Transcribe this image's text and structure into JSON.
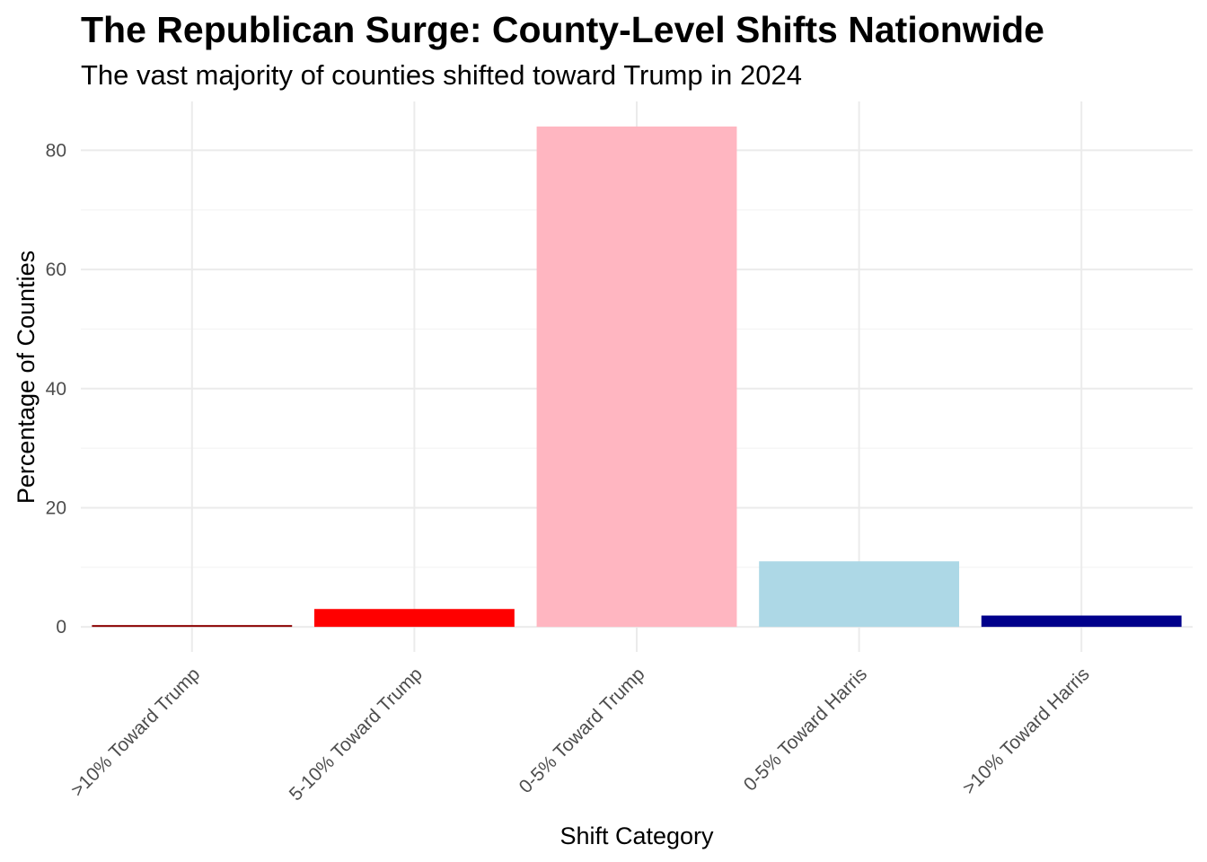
{
  "title": "The Republican Surge: County-Level Shifts Nationwide",
  "subtitle": "The vast majority of counties shifted toward Trump in 2024",
  "chart_data": {
    "type": "bar",
    "title": "The Republican Surge: County-Level Shifts Nationwide",
    "subtitle": "The vast majority of counties shifted toward Trump in 2024",
    "xlabel": "Shift Category",
    "ylabel": "Percentage of Counties",
    "categories": [
      ">10% Toward Trump",
      "5-10% Toward Trump",
      "0-5% Toward Trump",
      "0-5% Toward Harris",
      ">10% Toward Harris"
    ],
    "values": [
      0.3,
      3.0,
      84.0,
      11.0,
      1.9
    ],
    "colors": [
      "#8B0000",
      "#FF0000",
      "#FFB6C1",
      "#ADD8E6",
      "#00008B"
    ],
    "ylim": [
      -4.2,
      88.2
    ],
    "yticks": [
      0,
      20,
      40,
      60,
      80
    ],
    "grid": true,
    "legend": "none"
  }
}
